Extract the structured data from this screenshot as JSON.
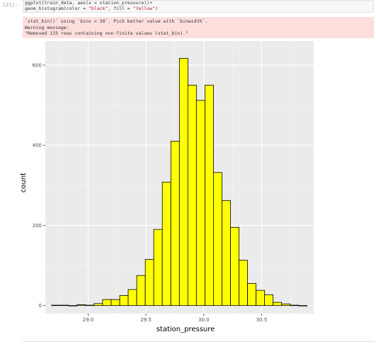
{
  "cell": {
    "prompt": "[21]:",
    "code_line1_a": "ggplot(train_data, aes(x = station_pressure))+",
    "code_line2_a": "geom_histogram(color = ",
    "code_line2_b": "\"black\"",
    "code_line2_c": ", fill = ",
    "code_line2_d": "\"Yellow\"",
    "code_line2_e": ")"
  },
  "output": {
    "warning_lines": [
      "`stat_bin()` using `bins = 30`. Pick better value with `binwidth`.",
      "Warning message:",
      "\"Removed 133 rows containing non-finite values (stat_bin).\""
    ]
  },
  "colors": {
    "bar_fill": "#ffff00",
    "bar_stroke": "#000000",
    "panel_bg": "#ebebeb",
    "grid_major": "#ffffff",
    "warning_bg": "#fddfdd"
  },
  "chart_data": {
    "type": "bar",
    "xlabel": "station_pressure",
    "ylabel": "count",
    "xlim": [
      28.63,
      30.95
    ],
    "ylim": [
      -20,
      660
    ],
    "x_ticks": [
      29.0,
      29.5,
      30.0,
      30.5
    ],
    "x_tick_labels": [
      "29.0",
      "29.5",
      "30.0",
      "30.5"
    ],
    "y_ticks": [
      0,
      200,
      400,
      600
    ],
    "y_tick_labels": [
      "0",
      "200",
      "400",
      "600"
    ],
    "bin_width": 0.0737,
    "bin_centers": [
      28.72,
      28.794,
      28.868,
      28.941,
      29.015,
      29.089,
      29.162,
      29.236,
      29.31,
      29.383,
      29.457,
      29.531,
      29.604,
      29.678,
      29.752,
      29.826,
      29.899,
      29.973,
      30.047,
      30.12,
      30.194,
      30.268,
      30.341,
      30.415,
      30.489,
      30.562,
      30.636,
      30.71,
      30.783,
      30.857
    ],
    "values": [
      1,
      1,
      0,
      2,
      1,
      5,
      15,
      15,
      25,
      40,
      75,
      115,
      190,
      308,
      410,
      617,
      550,
      512,
      550,
      332,
      262,
      195,
      113,
      55,
      38,
      27,
      8,
      4,
      1,
      0
    ],
    "grid": true
  }
}
